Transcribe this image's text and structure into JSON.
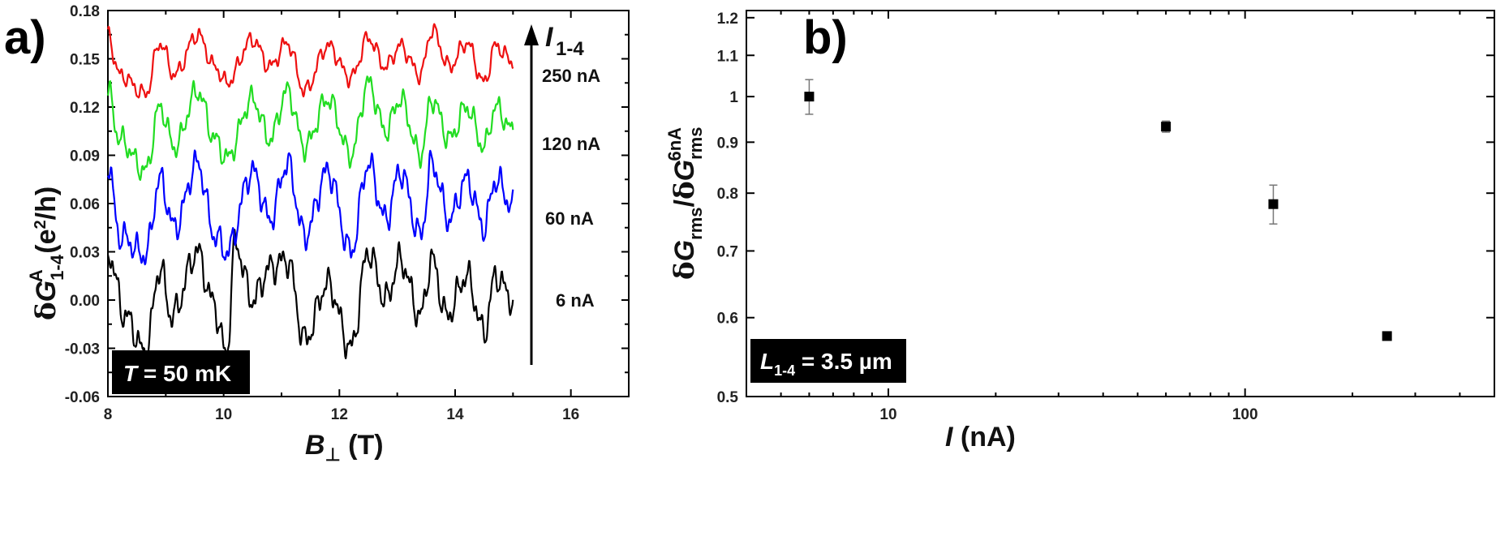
{
  "chart_data": [
    {
      "panel": "a)",
      "type": "line",
      "xlabel": "B⊥ (T)",
      "ylabel": "δG^A_1-4 (e²/h)",
      "xlim": [
        8,
        17
      ],
      "ylim": [
        -0.06,
        0.18
      ],
      "xticks": [
        8,
        10,
        12,
        14,
        16
      ],
      "yticks": [
        "-0.06",
        "-0.03",
        "0.00",
        "0.03",
        "0.06",
        "0.09",
        "0.12",
        "0.15",
        "0.18"
      ],
      "x_range": [
        8.0,
        15.0
      ],
      "arrow_label": "I1-4",
      "annotation": "T = 50 mK",
      "series": [
        {
          "current_label": "6 nA",
          "color": "#000000",
          "baseline": 0.0,
          "amplitude": 0.018,
          "points": [
            [
              8.0,
              0.03
            ],
            [
              8.3,
              -0.01
            ],
            [
              8.65,
              -0.033
            ],
            [
              8.9,
              0.02
            ],
            [
              9.1,
              -0.01
            ],
            [
              9.55,
              0.03
            ],
            [
              9.8,
              0.0
            ],
            [
              10.05,
              -0.033
            ],
            [
              10.2,
              0.035
            ],
            [
              10.5,
              0.0
            ],
            [
              10.8,
              0.02
            ],
            [
              11.1,
              0.025
            ],
            [
              11.4,
              -0.025
            ],
            [
              11.8,
              0.01
            ],
            [
              12.2,
              -0.03
            ],
            [
              12.5,
              0.03
            ],
            [
              12.8,
              0.0
            ],
            [
              13.05,
              0.025
            ],
            [
              13.4,
              -0.01
            ],
            [
              13.6,
              0.025
            ],
            [
              13.85,
              -0.01
            ],
            [
              14.2,
              0.015
            ],
            [
              14.5,
              -0.02
            ],
            [
              14.7,
              0.015
            ],
            [
              15.0,
              0.0
            ]
          ]
        },
        {
          "current_label": "60 nA",
          "color": "#0000ff",
          "baseline": 0.06,
          "amplitude": 0.017,
          "points": [
            [
              8.0,
              0.085
            ],
            [
              8.2,
              0.04
            ],
            [
              8.65,
              0.028
            ],
            [
              8.9,
              0.075
            ],
            [
              9.15,
              0.045
            ],
            [
              9.55,
              0.085
            ],
            [
              9.85,
              0.04
            ],
            [
              10.05,
              0.03
            ],
            [
              10.5,
              0.08
            ],
            [
              10.8,
              0.05
            ],
            [
              11.1,
              0.085
            ],
            [
              11.4,
              0.04
            ],
            [
              11.8,
              0.08
            ],
            [
              12.2,
              0.03
            ],
            [
              12.5,
              0.085
            ],
            [
              12.8,
              0.05
            ],
            [
              13.05,
              0.08
            ],
            [
              13.4,
              0.04
            ],
            [
              13.6,
              0.085
            ],
            [
              13.9,
              0.05
            ],
            [
              14.2,
              0.075
            ],
            [
              14.5,
              0.045
            ],
            [
              14.7,
              0.075
            ],
            [
              15.0,
              0.058
            ]
          ]
        },
        {
          "current_label": "120 nA",
          "color": "#22dd22",
          "baseline": 0.11,
          "amplitude": 0.014,
          "points": [
            [
              8.0,
              0.13
            ],
            [
              8.2,
              0.1
            ],
            [
              8.65,
              0.08
            ],
            [
              8.9,
              0.12
            ],
            [
              9.15,
              0.095
            ],
            [
              9.55,
              0.13
            ],
            [
              9.85,
              0.1
            ],
            [
              10.05,
              0.088
            ],
            [
              10.5,
              0.125
            ],
            [
              10.8,
              0.1
            ],
            [
              11.1,
              0.13
            ],
            [
              11.4,
              0.095
            ],
            [
              11.8,
              0.125
            ],
            [
              12.2,
              0.09
            ],
            [
              12.5,
              0.135
            ],
            [
              12.8,
              0.105
            ],
            [
              13.05,
              0.125
            ],
            [
              13.4,
              0.09
            ],
            [
              13.6,
              0.125
            ],
            [
              13.9,
              0.1
            ],
            [
              14.2,
              0.12
            ],
            [
              14.5,
              0.095
            ],
            [
              14.7,
              0.12
            ],
            [
              15.0,
              0.105
            ]
          ]
        },
        {
          "current_label": "250 nA",
          "color": "#ee1111",
          "baseline": 0.15,
          "amplitude": 0.01,
          "points": [
            [
              8.0,
              0.165
            ],
            [
              8.2,
              0.14
            ],
            [
              8.65,
              0.128
            ],
            [
              8.9,
              0.16
            ],
            [
              9.15,
              0.14
            ],
            [
              9.55,
              0.165
            ],
            [
              9.85,
              0.145
            ],
            [
              10.05,
              0.135
            ],
            [
              10.5,
              0.162
            ],
            [
              10.8,
              0.145
            ],
            [
              11.1,
              0.16
            ],
            [
              11.4,
              0.13
            ],
            [
              11.8,
              0.158
            ],
            [
              12.2,
              0.138
            ],
            [
              12.5,
              0.163
            ],
            [
              12.8,
              0.145
            ],
            [
              13.05,
              0.158
            ],
            [
              13.4,
              0.14
            ],
            [
              13.6,
              0.168
            ],
            [
              13.9,
              0.145
            ],
            [
              14.2,
              0.16
            ],
            [
              14.5,
              0.135
            ],
            [
              14.7,
              0.158
            ],
            [
              15.0,
              0.148
            ]
          ]
        }
      ]
    },
    {
      "panel": "b)",
      "type": "scatter",
      "xlabel": "I (nA)",
      "ylabel": "δG_rms/δG^6nA_rms",
      "x_scale": "log",
      "y_scale": "log",
      "xlim": [
        4,
        500
      ],
      "ylim": [
        0.5,
        1.22
      ],
      "xticks": [
        10,
        100
      ],
      "yticks": [
        0.5,
        0.6,
        0.7,
        0.8,
        0.9,
        1,
        1.1,
        1.2
      ],
      "annotation": "L1-4 = 3.5 µm",
      "points": [
        {
          "x": 6,
          "y": 1.0,
          "err": 0.04
        },
        {
          "x": 60,
          "y": 0.933,
          "err": 0.012
        },
        {
          "x": 120,
          "y": 0.78,
          "err": 0.035
        },
        {
          "x": 250,
          "y": 0.575,
          "err": 0.0
        }
      ]
    }
  ]
}
